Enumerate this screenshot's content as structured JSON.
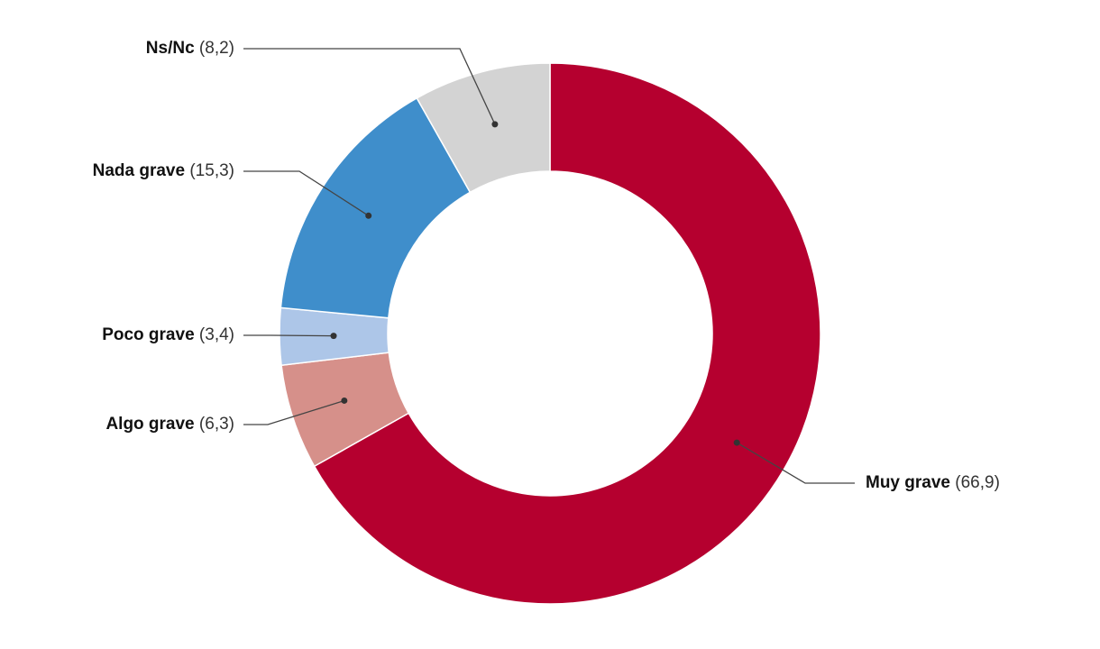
{
  "chart_data": {
    "type": "donut",
    "categories": [
      "Muy grave",
      "Algo grave",
      "Poco grave",
      "Nada grave",
      "Ns/Nc"
    ],
    "values": [
      66.9,
      6.3,
      3.4,
      15.3,
      8.2
    ],
    "value_labels": [
      "(66,9)",
      "(6,3)",
      "(3,4)",
      "(15,3)",
      "(8,2)"
    ],
    "colors": [
      "#b5002f",
      "#d6908a",
      "#adc6e8",
      "#3f8ecb",
      "#d3d3d3"
    ]
  }
}
